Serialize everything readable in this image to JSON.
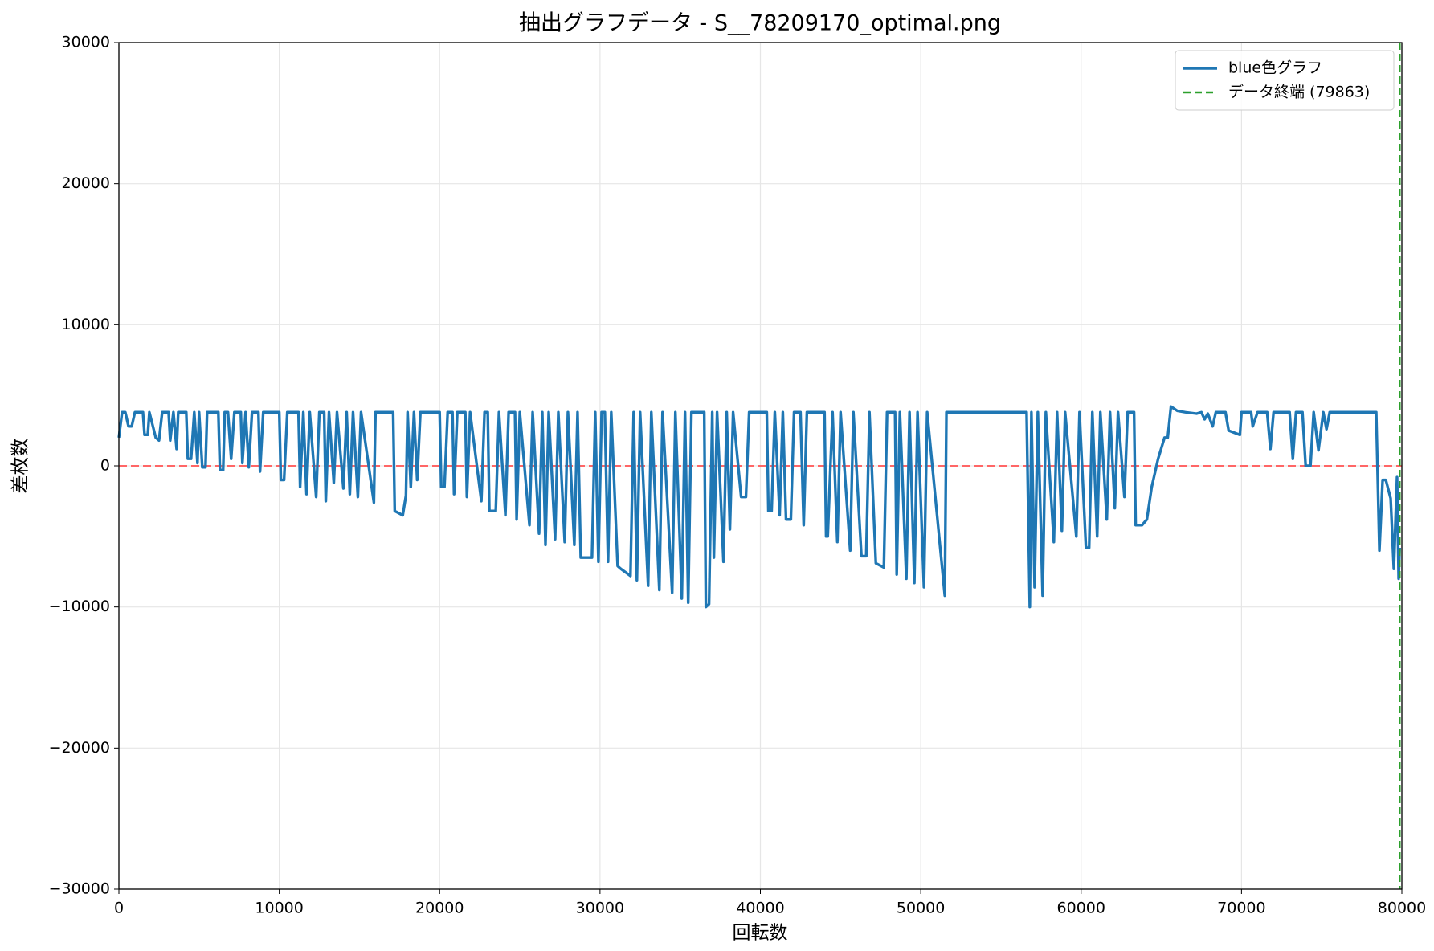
{
  "chart_data": {
    "type": "line",
    "title": "抽出グラフデータ - S__78209170_optimal.png",
    "x_label": "回転数",
    "y_label": "差枚数",
    "x": [
      0,
      200,
      400,
      600,
      800,
      1000,
      1500,
      1600,
      1800,
      1900,
      2300,
      2500,
      2700,
      3100,
      3200,
      3400,
      3600,
      3700,
      4200,
      4300,
      4500,
      4700,
      4900,
      5000,
      5200,
      5400,
      5500,
      6200,
      6300,
      6500,
      6600,
      6800,
      7000,
      7200,
      7600,
      7700,
      7900,
      8100,
      8300,
      8700,
      8800,
      9000,
      10000,
      10100,
      10300,
      10500,
      11200,
      11300,
      11500,
      11700,
      11900,
      12300,
      12500,
      12800,
      12900,
      13100,
      13400,
      13600,
      14000,
      14200,
      14400,
      14600,
      14900,
      15100,
      15900,
      16000,
      17100,
      17200,
      17700,
      17900,
      18000,
      18200,
      18400,
      18600,
      18800,
      20000,
      20100,
      20300,
      20500,
      20800,
      20900,
      21100,
      21600,
      21700,
      21900,
      22600,
      22800,
      23000,
      23100,
      23500,
      23700,
      24100,
      24300,
      24700,
      24800,
      25000,
      25600,
      25800,
      26200,
      26400,
      26600,
      26800,
      27200,
      27400,
      27800,
      28000,
      28400,
      28600,
      28800,
      29500,
      29700,
      29900,
      30100,
      30300,
      30500,
      30700,
      31100,
      31300,
      31900,
      32100,
      32300,
      32500,
      33000,
      33200,
      33700,
      33900,
      34500,
      34700,
      35100,
      35300,
      35500,
      35700,
      36500,
      36600,
      36800,
      37000,
      37100,
      37300,
      37700,
      37900,
      38100,
      38300,
      38800,
      39100,
      39300,
      40400,
      40500,
      40700,
      40900,
      41200,
      41400,
      41600,
      41900,
      42100,
      42500,
      42700,
      42900,
      44000,
      44100,
      44200,
      44500,
      44800,
      45000,
      45600,
      45800,
      46300,
      46600,
      46800,
      47200,
      47700,
      47900,
      48400,
      48500,
      48700,
      49100,
      49300,
      49600,
      49800,
      50200,
      50400,
      51500,
      51600,
      56600,
      56800,
      56900,
      57100,
      57300,
      57600,
      57800,
      58300,
      58500,
      58800,
      59000,
      59700,
      59900,
      60300,
      60500,
      60700,
      61000,
      61200,
      61600,
      61800,
      62100,
      62300,
      62700,
      62900,
      63300,
      63400,
      63800,
      64100,
      64400,
      64800,
      65200,
      65400,
      65600,
      66000,
      66500,
      67200,
      67500,
      67700,
      67900,
      68200,
      68400,
      69000,
      69200,
      69900,
      70000,
      70600,
      70700,
      71000,
      71600,
      71800,
      72000,
      73000,
      73200,
      73400,
      73800,
      74000,
      74300,
      74500,
      74800,
      75100,
      75300,
      75500,
      78400,
      78600,
      78800,
      79000,
      79300,
      79500,
      79700,
      79800,
      79863
    ],
    "series": [
      {
        "name": "blue色グラフ",
        "color": "#1f77b4",
        "values": [
          2000,
          3800,
          3800,
          2800,
          2800,
          3800,
          3800,
          2200,
          2200,
          3800,
          2000,
          1800,
          3800,
          3800,
          1800,
          3800,
          1200,
          3800,
          3800,
          500,
          500,
          3800,
          200,
          3800,
          -100,
          -100,
          3800,
          3800,
          -300,
          -300,
          3800,
          3800,
          500,
          3800,
          3800,
          200,
          3800,
          -100,
          3800,
          3800,
          -400,
          3800,
          3800,
          -1000,
          -1000,
          3800,
          3800,
          -1500,
          3800,
          -2000,
          3800,
          -2200,
          3800,
          3800,
          -2500,
          3800,
          -1200,
          3800,
          -1600,
          3800,
          -2000,
          3800,
          -2200,
          3800,
          -2600,
          3800,
          3800,
          -3200,
          -3500,
          -2100,
          3800,
          -1500,
          3800,
          -1000,
          3800,
          3800,
          -1500,
          -1500,
          3800,
          3800,
          -2000,
          3800,
          3800,
          -2200,
          3800,
          -2500,
          3800,
          3800,
          -3200,
          -3200,
          3800,
          -3500,
          3800,
          3800,
          -3800,
          3800,
          -4200,
          3800,
          -4800,
          3800,
          -5600,
          3800,
          -5200,
          3800,
          -5400,
          3800,
          -5600,
          3800,
          -6500,
          -6500,
          3800,
          -6800,
          3800,
          3800,
          -6800,
          3800,
          -7100,
          -7300,
          -7800,
          3800,
          -8100,
          3800,
          -8500,
          3800,
          -8800,
          3800,
          -9000,
          3800,
          -9400,
          3800,
          -9700,
          3800,
          3800,
          -10000,
          -9800,
          3800,
          -6500,
          3800,
          -6800,
          3800,
          -4500,
          3800,
          -2200,
          -2200,
          3800,
          3800,
          -3200,
          -3200,
          3800,
          -3500,
          3800,
          -3800,
          -3800,
          3800,
          3800,
          -4200,
          3800,
          3800,
          -5000,
          -5000,
          3800,
          -5400,
          3800,
          -6000,
          3800,
          -6400,
          -6400,
          3800,
          -6900,
          -7200,
          3800,
          3800,
          -7700,
          3800,
          -8000,
          3800,
          -8300,
          3800,
          -8600,
          3800,
          -9200,
          3800,
          3800,
          -10000,
          3800,
          -8600,
          3800,
          -9200,
          3800,
          -5400,
          3800,
          -4600,
          3800,
          -5000,
          3800,
          -5800,
          -5800,
          3800,
          -5000,
          3800,
          -3800,
          3800,
          -3000,
          3800,
          -2200,
          3800,
          3800,
          -4200,
          -4200,
          -3800,
          -1500,
          500,
          2000,
          2000,
          4200,
          3900,
          3800,
          3700,
          3800,
          3300,
          3700,
          2800,
          3800,
          3800,
          2500,
          2200,
          3800,
          3800,
          2800,
          3800,
          3800,
          1200,
          3800,
          3800,
          500,
          3800,
          3800,
          0,
          0,
          3800,
          1100,
          3800,
          2600,
          3800,
          3800,
          -6000,
          -1000,
          -1000,
          -2300,
          -7300,
          -800,
          -8000,
          -5800
        ]
      }
    ],
    "zero_line": {
      "value": 0,
      "color": "#ff6666"
    },
    "vlines": [
      {
        "name": "データ終端 (79863)",
        "value": 79863,
        "color": "#2ca02c"
      }
    ],
    "xlim": [
      0,
      80000
    ],
    "xticks": [
      0,
      10000,
      20000,
      30000,
      40000,
      50000,
      60000,
      70000,
      80000
    ],
    "ylim": [
      -30000,
      30000
    ],
    "yticks": [
      {
        "value": -30000,
        "label": "−30000"
      },
      {
        "value": -20000,
        "label": "−20000"
      },
      {
        "value": -10000,
        "label": "−10000"
      },
      0,
      10000,
      20000,
      30000
    ],
    "grid": true,
    "legend": "upper-right"
  }
}
